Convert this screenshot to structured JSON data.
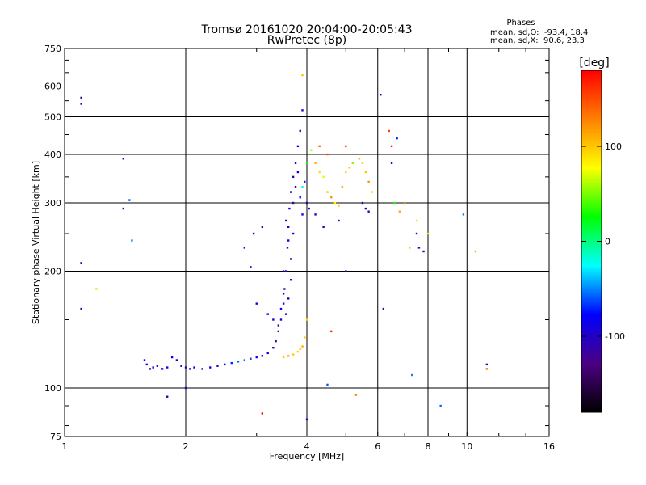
{
  "chart_data": {
    "type": "scatter",
    "title": "Tromsø 20161020 20:04:00-20:05:43",
    "subtitle": "RwPretec (8p)",
    "xlabel": "Frequency [MHz]",
    "ylabel": "Stationary phase Virtual Height [km]",
    "xscale": "log",
    "yscale": "log",
    "xlim": [
      1,
      16
    ],
    "ylim": [
      75,
      750
    ],
    "xticks": [
      1,
      2,
      4,
      6,
      8,
      10,
      16
    ],
    "yticks": [
      75,
      100,
      200,
      300,
      400,
      500,
      600,
      750
    ],
    "grid": true,
    "phase_stats": {
      "title": "Phases",
      "line_o": "mean, sd,O:  -93.4, 18.4",
      "line_x": "mean, sd,X:  90.6, 23.3"
    },
    "colorbar": {
      "label": "[deg]",
      "range": [
        -180,
        180
      ],
      "ticks": [
        100,
        0,
        -100
      ],
      "colors": [
        "#000000",
        "#4b0082",
        "#0000ff",
        "#00ffff",
        "#00ff00",
        "#ffff00",
        "#ff8000",
        "#ff0000"
      ]
    },
    "series": [
      {
        "polarisation": "O",
        "points": [
          [
            1.58,
            118,
            -80
          ],
          [
            1.6,
            115,
            -95
          ],
          [
            1.63,
            112,
            -110
          ],
          [
            1.66,
            113,
            -85
          ],
          [
            1.7,
            114,
            -100
          ],
          [
            1.75,
            112,
            -90
          ],
          [
            1.8,
            113,
            -105
          ],
          [
            1.85,
            120,
            -80
          ],
          [
            1.9,
            118,
            -95
          ],
          [
            1.95,
            114,
            -100
          ],
          [
            2.0,
            113,
            -110
          ],
          [
            2.05,
            112,
            -95
          ],
          [
            2.1,
            113,
            -85
          ],
          [
            2.2,
            112,
            -100
          ],
          [
            2.3,
            113,
            -90
          ],
          [
            2.4,
            114,
            -105
          ],
          [
            2.5,
            115,
            -80
          ],
          [
            2.6,
            116,
            -70
          ],
          [
            2.7,
            117,
            -60
          ],
          [
            2.8,
            118,
            -55
          ],
          [
            2.9,
            119,
            -65
          ],
          [
            3.0,
            120,
            -80
          ],
          [
            3.1,
            121,
            -90
          ],
          [
            3.2,
            123,
            -100
          ],
          [
            3.3,
            127,
            -95
          ],
          [
            3.35,
            132,
            -105
          ],
          [
            3.4,
            140,
            -110
          ],
          [
            3.45,
            150,
            -100
          ],
          [
            3.5,
            165,
            -95
          ],
          [
            3.52,
            180,
            -110
          ],
          [
            3.55,
            200,
            -100
          ],
          [
            3.58,
            230,
            -105
          ],
          [
            3.6,
            260,
            -95
          ],
          [
            3.62,
            290,
            -90
          ],
          [
            3.65,
            320,
            -100
          ],
          [
            3.7,
            350,
            -110
          ],
          [
            3.75,
            380,
            -95
          ],
          [
            3.8,
            420,
            -85
          ],
          [
            3.85,
            460,
            -100
          ],
          [
            3.9,
            520,
            -105
          ],
          [
            3.7,
            300,
            -120
          ],
          [
            3.75,
            330,
            -115
          ],
          [
            3.8,
            360,
            -80
          ],
          [
            3.85,
            310,
            -75
          ],
          [
            3.9,
            280,
            -90
          ],
          [
            3.95,
            340,
            -70
          ],
          [
            4.0,
            300,
            -110
          ],
          [
            4.05,
            290,
            -100
          ],
          [
            3.6,
            240,
            -85
          ],
          [
            3.55,
            270,
            -95
          ],
          [
            3.65,
            190,
            -115
          ],
          [
            3.5,
            175,
            -100
          ],
          [
            3.45,
            160,
            -90
          ],
          [
            3.4,
            145,
            -105
          ],
          [
            3.3,
            150,
            -95
          ],
          [
            3.55,
            155,
            -110
          ],
          [
            3.6,
            170,
            -100
          ],
          [
            3.5,
            200,
            -95
          ],
          [
            3.65,
            215,
            -105
          ],
          [
            3.7,
            250,
            -100
          ],
          [
            1.1,
            210,
            -100
          ],
          [
            1.1,
            160,
            -110
          ],
          [
            1.1,
            560,
            -120
          ],
          [
            1.1,
            540,
            -100
          ],
          [
            1.4,
            390,
            -100
          ],
          [
            1.4,
            290,
            -110
          ],
          [
            1.45,
            305,
            -60
          ],
          [
            1.47,
            240,
            -50
          ],
          [
            2.8,
            230,
            -100
          ],
          [
            2.95,
            250,
            -95
          ],
          [
            3.1,
            260,
            -90
          ],
          [
            2.9,
            205,
            -100
          ],
          [
            3.0,
            165,
            -90
          ],
          [
            3.2,
            155,
            -80
          ],
          [
            2.0,
            100,
            -110
          ],
          [
            1.8,
            95,
            -110
          ],
          [
            4.0,
            83,
            -80
          ],
          [
            6.1,
            570,
            -85
          ],
          [
            6.5,
            380,
            -90
          ],
          [
            6.7,
            440,
            -70
          ],
          [
            5.5,
            300,
            -100
          ],
          [
            5.6,
            290,
            -95
          ],
          [
            5.7,
            285,
            -110
          ],
          [
            4.8,
            270,
            -100
          ],
          [
            5.0,
            200,
            -90
          ],
          [
            7.5,
            250,
            -95
          ],
          [
            7.6,
            230,
            -100
          ],
          [
            7.8,
            225,
            -110
          ],
          [
            4.4,
            260,
            -95
          ],
          [
            4.2,
            280,
            -100
          ],
          [
            11.2,
            115,
            -110
          ],
          [
            8.6,
            90,
            -55
          ],
          [
            7.3,
            108,
            -50
          ],
          [
            4.5,
            102,
            -60
          ],
          [
            9.8,
            280,
            -50
          ],
          [
            6.2,
            160,
            -120
          ]
        ]
      },
      {
        "polarisation": "X",
        "points": [
          [
            3.9,
            640,
            100
          ],
          [
            4.1,
            410,
            60
          ],
          [
            4.2,
            380,
            110
          ],
          [
            4.3,
            360,
            90
          ],
          [
            4.4,
            350,
            70
          ],
          [
            4.5,
            320,
            100
          ],
          [
            4.6,
            310,
            120
          ],
          [
            4.7,
            300,
            80
          ],
          [
            4.8,
            295,
            100
          ],
          [
            4.9,
            330,
            110
          ],
          [
            5.0,
            360,
            95
          ],
          [
            5.1,
            370,
            100
          ],
          [
            5.4,
            390,
            110
          ],
          [
            5.5,
            380,
            95
          ],
          [
            5.6,
            360,
            100
          ],
          [
            5.7,
            340,
            120
          ],
          [
            5.8,
            320,
            100
          ],
          [
            4.0,
            150,
            95
          ],
          [
            3.95,
            135,
            100
          ],
          [
            3.9,
            128,
            110
          ],
          [
            3.85,
            126,
            100
          ],
          [
            3.8,
            124,
            95
          ],
          [
            3.7,
            122,
            100
          ],
          [
            3.6,
            121,
            110
          ],
          [
            3.5,
            120,
            100
          ],
          [
            4.3,
            420,
            140
          ],
          [
            4.5,
            400,
            150
          ],
          [
            5.0,
            420,
            150
          ],
          [
            6.4,
            460,
            160
          ],
          [
            6.5,
            420,
            170
          ],
          [
            6.8,
            285,
            110
          ],
          [
            7.0,
            300,
            120
          ],
          [
            7.5,
            270,
            95
          ],
          [
            7.2,
            230,
            100
          ],
          [
            8.0,
            250,
            90
          ],
          [
            10.5,
            225,
            110
          ],
          [
            4.6,
            140,
            165
          ],
          [
            3.1,
            86,
            175
          ],
          [
            5.2,
            380,
            50
          ],
          [
            4.0,
            380,
            20
          ],
          [
            3.9,
            330,
            -20
          ],
          [
            5.3,
            96,
            130
          ],
          [
            11.2,
            112,
            130
          ],
          [
            1.2,
            180,
            60
          ],
          [
            6.6,
            300,
            30
          ]
        ]
      }
    ]
  }
}
